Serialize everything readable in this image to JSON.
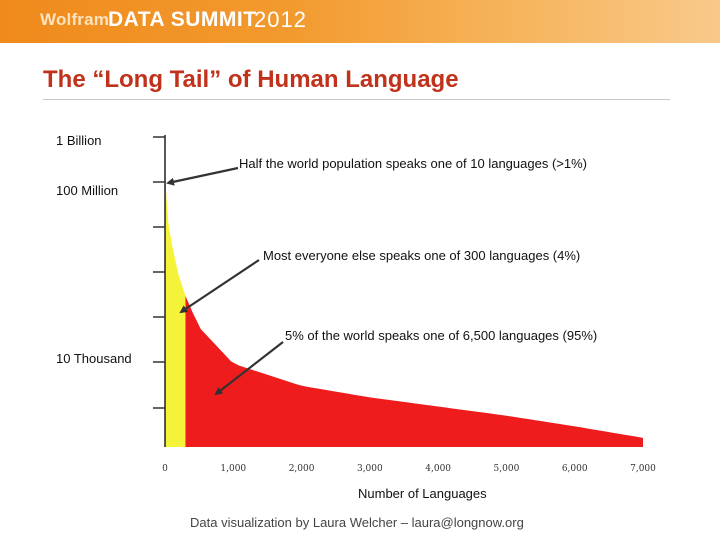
{
  "banner": {
    "brand": "Wolfram",
    "event": "DATA SUMMIT",
    "year": "2012"
  },
  "slide": {
    "title": "The “Long Tail” of Human Language",
    "credit": "Data visualization by Laura Welcher – laura@longnow.org"
  },
  "colors": {
    "banner": "#f29a2e",
    "title": "#c0321b",
    "green": "#22b014",
    "yellow": "#f5f23a",
    "red": "#ee1c1c"
  },
  "chart_data": {
    "type": "area",
    "xlabel": "Number of Languages",
    "ylabel": "",
    "xlim": [
      0,
      7000
    ],
    "x_tick_labels": [
      "0",
      "1,000",
      "2,000",
      "3,000",
      "4,000",
      "5,000",
      "6,000",
      "7,000"
    ],
    "y_tick_labels": [
      "1 Billion",
      "100 Million",
      "10 Thousand"
    ],
    "y_scale": "log",
    "grid": false,
    "curve": {
      "x": [
        0,
        10,
        50,
        100,
        200,
        300,
        500,
        1000,
        2000,
        3000,
        4000,
        5000,
        6000,
        7000
      ],
      "y": [
        1000000000,
        100000000,
        20000000,
        8000000,
        2000000,
        800000,
        200000,
        40000,
        15000,
        9000,
        6000,
        4000,
        2500,
        1500
      ]
    },
    "segments": [
      {
        "from": 0,
        "to": 10,
        "color": "green"
      },
      {
        "from": 10,
        "to": 300,
        "color": "yellow"
      },
      {
        "from": 300,
        "to": 7000,
        "color": "red"
      }
    ],
    "annotations": [
      "Half the world population speaks one of 10 languages (>1%)",
      "Most everyone else speaks one of 300 languages (4%)",
      "5% of the world speaks one of 6,500 languages (95%)"
    ]
  }
}
